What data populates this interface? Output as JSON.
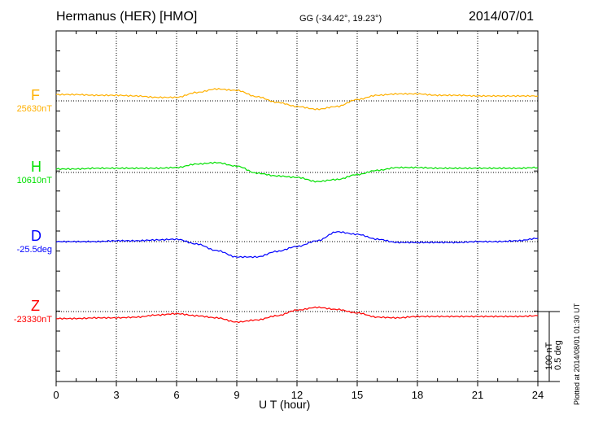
{
  "header": {
    "station": "Hermanus (HER)  [HMO]",
    "coords": "GG (-34.42°,  19.23°)",
    "date": "2014/07/01"
  },
  "plotted": "Plotted at 2014/08/01 01:30 UT",
  "scale": {
    "line1": "100 nT",
    "line2": "0.5 deg"
  },
  "chart_data": {
    "type": "line",
    "xlabel": "U T (hour)",
    "xlim": [
      0,
      24
    ],
    "xticks": [
      "0",
      "3",
      "6",
      "9",
      "12",
      "15",
      "18",
      "21",
      "24"
    ],
    "x": [
      0,
      1,
      2,
      3,
      4,
      5,
      6,
      7,
      8,
      9,
      10,
      11,
      12,
      13,
      14,
      15,
      16,
      17,
      18,
      19,
      20,
      21,
      22,
      23,
      24
    ],
    "series": [
      {
        "name": "F",
        "baseline_label": "25630nT",
        "unit": "nT",
        "color": "#ffb000",
        "values": [
          9,
          9,
          8,
          8,
          7,
          5,
          5,
          12,
          17,
          15,
          6,
          -2,
          -8,
          -12,
          -8,
          2,
          8,
          10,
          10,
          8,
          8,
          7,
          7,
          7,
          7
        ]
      },
      {
        "name": "H",
        "baseline_label": "10610nT",
        "unit": "nT",
        "color": "#00e000",
        "values": [
          5,
          5,
          6,
          6,
          6,
          6,
          7,
          12,
          14,
          9,
          -1,
          -5,
          -7,
          -13,
          -10,
          -3,
          3,
          7,
          7,
          6,
          6,
          6,
          6,
          6,
          7
        ]
      },
      {
        "name": "D",
        "baseline_label": "-25.5deg",
        "unit": "deg",
        "color": "#0000ff",
        "values": [
          0,
          0,
          0,
          0.006,
          0.006,
          0.012,
          0.017,
          -0.017,
          -0.064,
          -0.11,
          -0.11,
          -0.07,
          -0.035,
          0.006,
          0.07,
          0.052,
          0.017,
          -0.006,
          -0.006,
          -0.006,
          -0.006,
          0,
          0,
          0.006,
          0.023
        ]
      },
      {
        "name": "Z",
        "baseline_label": "-23330nT",
        "unit": "nT",
        "color": "#ff0000",
        "values": [
          -10,
          -10,
          -9,
          -9,
          -8,
          -5,
          -3,
          -6,
          -9,
          -15,
          -12,
          -6,
          2,
          6,
          3,
          -2,
          -8,
          -9,
          -7,
          -7,
          -7,
          -7,
          -7,
          -7,
          -6
        ]
      }
    ]
  }
}
